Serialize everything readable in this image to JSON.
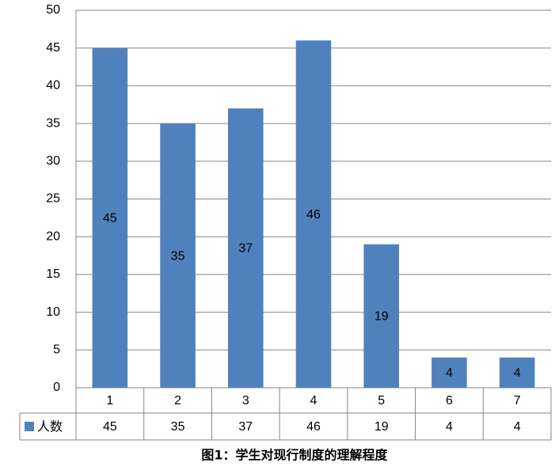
{
  "chart_data": {
    "type": "bar",
    "title": "图1：学生对现行制度的理解程度",
    "categories": [
      "1",
      "2",
      "3",
      "4",
      "5",
      "6",
      "7"
    ],
    "series": [
      {
        "name": "人数",
        "color": "#4f81bd",
        "values": [
          45,
          35,
          37,
          46,
          19,
          4,
          4
        ]
      }
    ],
    "ylim": [
      0,
      50
    ],
    "yticks": [
      0,
      5,
      10,
      15,
      20,
      25,
      30,
      35,
      40,
      45,
      50
    ],
    "grid": true,
    "data_table": true
  }
}
